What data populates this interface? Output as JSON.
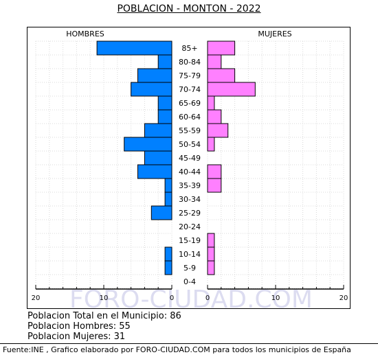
{
  "chart_data": {
    "type": "bar",
    "title": "POBLACION - MONTON - 2022",
    "left_label": "HOMBRES",
    "right_label": "MUJERES",
    "categories": [
      "85+",
      "80-84",
      "75-79",
      "70-74",
      "65-69",
      "60-64",
      "55-59",
      "50-54",
      "45-49",
      "40-44",
      "35-39",
      "30-34",
      "25-29",
      "20-24",
      "15-19",
      "10-14",
      "5-9",
      "0-4"
    ],
    "series": [
      {
        "name": "HOMBRES",
        "values": [
          11,
          2,
          5,
          6,
          2,
          2,
          4,
          7,
          4,
          5,
          1,
          1,
          3,
          0,
          0,
          1,
          1,
          0
        ],
        "color": "#0080ff"
      },
      {
        "name": "MUJERES",
        "values": [
          4,
          2,
          4,
          7,
          1,
          2,
          3,
          1,
          0,
          2,
          2,
          0,
          0,
          0,
          1,
          1,
          1,
          0
        ],
        "color": "#ff80ff"
      }
    ],
    "x_ticks_left": [
      "20",
      "10",
      "0"
    ],
    "x_ticks_right": [
      "0",
      "10",
      "20"
    ],
    "xlim": [
      0,
      20
    ],
    "grid": true,
    "watermark": "FORO-CIUDAD.COM"
  },
  "summary": {
    "total": "Poblacion Total en el Municipio: 86",
    "men": "Poblacion Hombres: 55",
    "women": "Poblacion Mujeres: 31"
  },
  "source": "Fuente:INE , Grafico elaborado por FORO-CIUDAD.COM para todos los municipios de España"
}
